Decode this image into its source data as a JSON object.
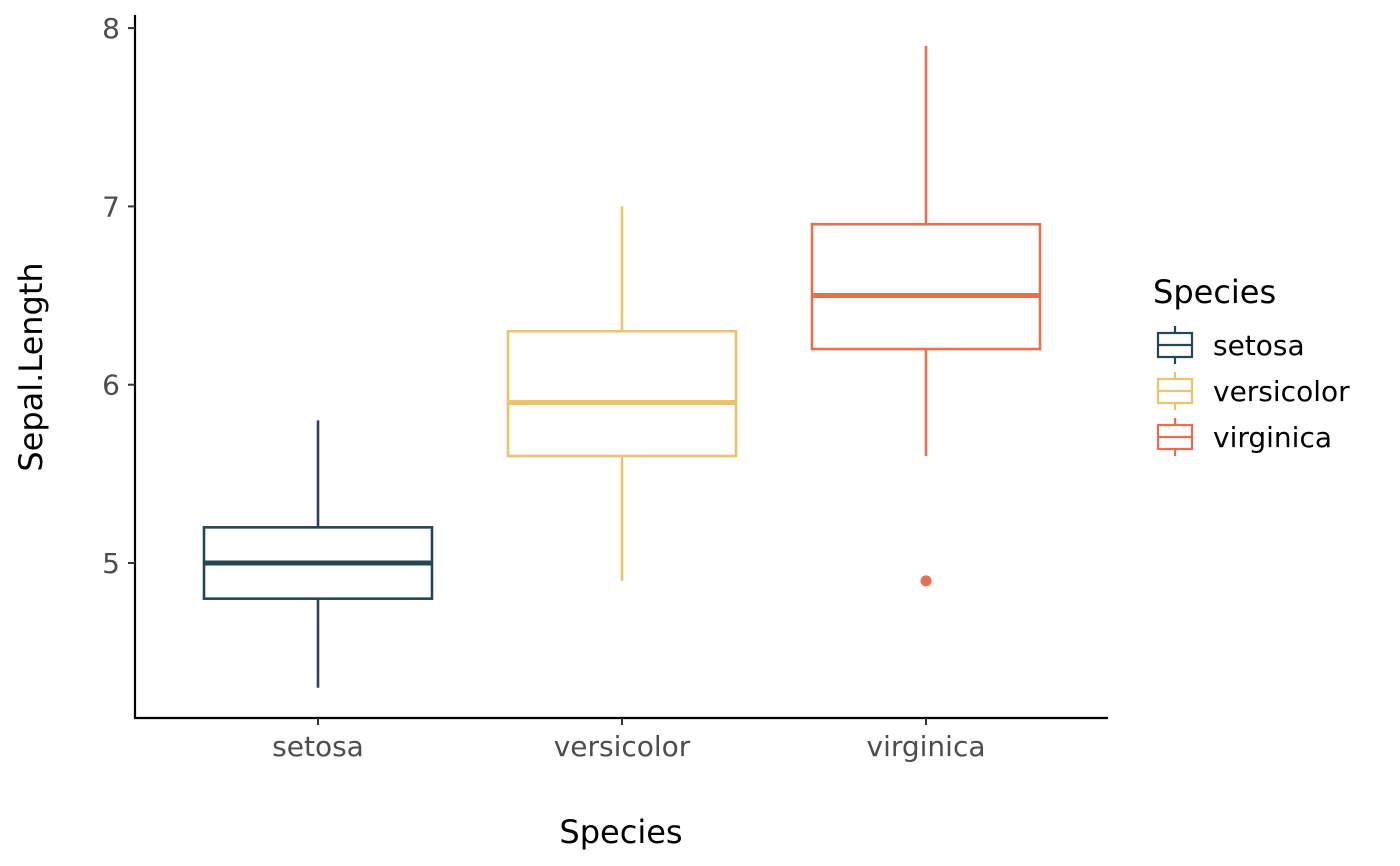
{
  "chart_data": {
    "type": "boxplot",
    "title": "",
    "xlabel": "Species",
    "ylabel": "Sepal.Length",
    "ylim": [
      4.2,
      8.0
    ],
    "yticks": [
      5,
      6,
      7,
      8
    ],
    "categories": [
      "setosa",
      "versicolor",
      "virginica"
    ],
    "colors": {
      "setosa": "#264653",
      "versicolor": "#e9c46a",
      "virginica": "#e76f51"
    },
    "boxes": [
      {
        "category": "setosa",
        "min": 4.3,
        "q1": 4.8,
        "median": 5.0,
        "q3": 5.2,
        "max": 5.8,
        "outliers": []
      },
      {
        "category": "versicolor",
        "min": 4.9,
        "q1": 5.6,
        "median": 5.9,
        "q3": 6.3,
        "max": 7.0,
        "outliers": []
      },
      {
        "category": "virginica",
        "min": 5.6,
        "q1": 6.2,
        "median": 6.5,
        "q3": 6.9,
        "max": 7.9,
        "outliers": [
          4.9
        ]
      }
    ],
    "grid": false,
    "legend": {
      "title": "Species",
      "position": "right",
      "items": [
        "setosa",
        "versicolor",
        "virginica"
      ]
    }
  }
}
